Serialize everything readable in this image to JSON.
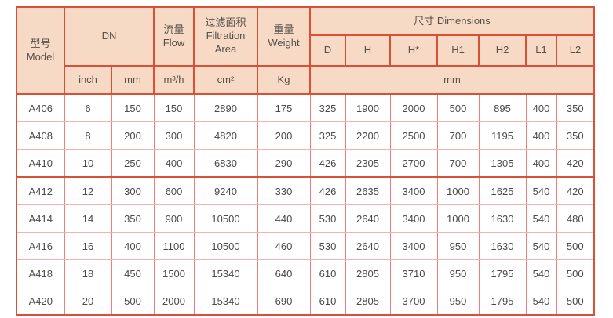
{
  "colors": {
    "header_bg": "#f7dac6",
    "border_strong": "#da5035",
    "border_vertical": "#e8837a",
    "border_horizontal": "#f2b3ad",
    "header_text": "#565049",
    "cell_text": "#4c4948",
    "row_bg": "#ffffff"
  },
  "table": {
    "header": {
      "model": "型号\nModel",
      "dn": "DN",
      "flow": "流量\nFlow",
      "filtration_area": "过滤面积\nFiltration\nArea",
      "weight": "重量\nWeight",
      "dimensions": "尺寸 Dimensions",
      "dim_cols": [
        "D",
        "H",
        "H*",
        "H1",
        "H2",
        "L1",
        "L2"
      ],
      "units": {
        "dn_inch": "inch",
        "dn_mm": "mm",
        "flow": "m³/h",
        "area": "cm²",
        "weight": "Kg",
        "dims": "mm"
      }
    },
    "columns": [
      "model",
      "dn-inch",
      "dn-mm",
      "flow",
      "filtration-area",
      "weight",
      "dim-d",
      "dim-h",
      "dim-h-star",
      "dim-h1",
      "dim-h2",
      "dim-l1",
      "dim-l2"
    ],
    "rows": [
      [
        "A406",
        "6",
        "150",
        "150",
        "2890",
        "175",
        "325",
        "1900",
        "2000",
        "500",
        "895",
        "400",
        "350"
      ],
      [
        "A408",
        "8",
        "200",
        "300",
        "4820",
        "200",
        "325",
        "2200",
        "2500",
        "700",
        "1195",
        "400",
        "350"
      ],
      [
        "A410",
        "10",
        "250",
        "400",
        "6830",
        "290",
        "426",
        "2305",
        "2700",
        "700",
        "1305",
        "400",
        "420"
      ],
      [
        "A412",
        "12",
        "300",
        "600",
        "9240",
        "330",
        "426",
        "2635",
        "3400",
        "1000",
        "1625",
        "540",
        "420"
      ],
      [
        "A414",
        "14",
        "350",
        "900",
        "10500",
        "440",
        "530",
        "2640",
        "3400",
        "1000",
        "1630",
        "540",
        "480"
      ],
      [
        "A416",
        "16",
        "400",
        "1100",
        "10500",
        "460",
        "530",
        "2640",
        "3400",
        "950",
        "1630",
        "540",
        "500"
      ],
      [
        "A418",
        "18",
        "450",
        "1500",
        "15340",
        "640",
        "610",
        "2805",
        "3710",
        "950",
        "1795",
        "540",
        "500"
      ],
      [
        "A420",
        "20",
        "500",
        "2000",
        "15340",
        "690",
        "610",
        "2805",
        "3700",
        "950",
        "1795",
        "540",
        "500"
      ]
    ],
    "strong_divider_before_row": 3
  }
}
